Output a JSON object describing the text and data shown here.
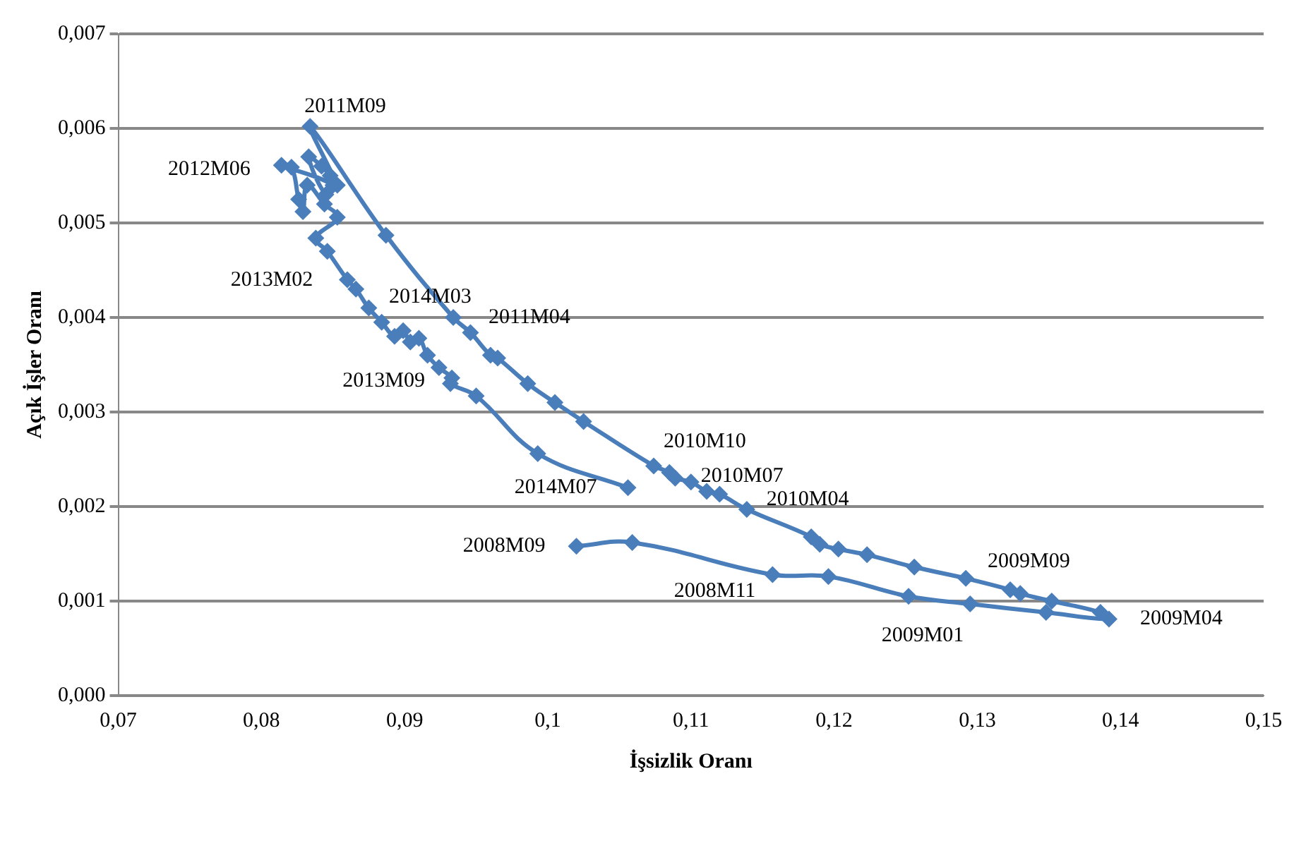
{
  "chart_data": {
    "type": "line",
    "xlabel": "İşsizlik Oranı",
    "ylabel": "Açık İşler Oranı",
    "marker": "diamond",
    "grid": "y",
    "legend": false,
    "xlim": [
      0.07,
      0.15
    ],
    "xticks": [
      {
        "value": 0.07,
        "label": "0,07"
      },
      {
        "value": 0.08,
        "label": "0,08"
      },
      {
        "value": 0.09,
        "label": "0,09"
      },
      {
        "value": 0.1,
        "label": "0,1"
      },
      {
        "value": 0.11,
        "label": "0,11"
      },
      {
        "value": 0.12,
        "label": "0,12"
      },
      {
        "value": 0.13,
        "label": "0,13"
      },
      {
        "value": 0.14,
        "label": "0,14"
      },
      {
        "value": 0.15,
        "label": "0,15"
      }
    ],
    "ylim": [
      0,
      0.007
    ],
    "yticks": [
      {
        "value": 0,
        "label": "0,000"
      },
      {
        "value": 0.001,
        "label": "0,001"
      },
      {
        "value": 0.002,
        "label": "0,002"
      },
      {
        "value": 0.003,
        "label": "0,003"
      },
      {
        "value": 0.004,
        "label": "0,004"
      },
      {
        "value": 0.005,
        "label": "0,005"
      },
      {
        "value": 0.006,
        "label": "0,006"
      },
      {
        "value": 0.007,
        "label": "0,007"
      }
    ],
    "series": [
      {
        "color": "#4a7ebb",
        "x": [
          0.102,
          0.1059,
          0.1157,
          0.1196,
          0.1252,
          0.1295,
          0.1348,
          0.1392,
          0.1386,
          0.1352,
          0.133,
          0.1323,
          0.1292,
          0.1256,
          0.1223,
          0.1203,
          0.119,
          0.1184,
          0.1139,
          0.112,
          0.1111,
          0.11,
          0.1089,
          0.1085,
          0.1074,
          0.1025,
          0.1005,
          0.0986,
          0.0965,
          0.096,
          0.0946,
          0.0934,
          0.0887,
          0.0834,
          0.0853,
          0.0848,
          0.0842,
          0.0833,
          0.0845,
          0.085,
          0.0814,
          0.0821,
          0.0826,
          0.0829,
          0.0832,
          0.0844,
          0.0853,
          0.0838,
          0.0846,
          0.086,
          0.0866,
          0.0875,
          0.0884,
          0.0893,
          0.0899,
          0.0904,
          0.091,
          0.0916,
          0.0924,
          0.0933,
          0.0932,
          0.095,
          0.0993,
          0.1056
        ],
        "values": [
          0.00158,
          0.00162,
          0.00128,
          0.00126,
          0.00105,
          0.00097,
          0.00088,
          0.00081,
          0.00088,
          0.001,
          0.00108,
          0.00112,
          0.00124,
          0.00136,
          0.00149,
          0.00155,
          0.0016,
          0.00168,
          0.00197,
          0.00213,
          0.00216,
          0.00226,
          0.0023,
          0.00236,
          0.00243,
          0.0029,
          0.0031,
          0.0033,
          0.00357,
          0.0036,
          0.00384,
          0.004,
          0.00487,
          0.00602,
          0.0054,
          0.0055,
          0.0056,
          0.0057,
          0.0053,
          0.0054,
          0.00561,
          0.00559,
          0.00525,
          0.00512,
          0.0054,
          0.0052,
          0.00506,
          0.00484,
          0.0047,
          0.0044,
          0.0043,
          0.0041,
          0.00395,
          0.0038,
          0.00386,
          0.00374,
          0.00378,
          0.0036,
          0.00347,
          0.00336,
          0.0033,
          0.00317,
          0.00256,
          0.0022
        ]
      }
    ],
    "annotations": [
      {
        "text": "2011M09",
        "x": 0.0834,
        "y": 0.00602
      },
      {
        "text": "2012M06",
        "x": 0.0814,
        "y": 0.00561
      },
      {
        "text": "2013M02",
        "x": 0.0838,
        "y": 0.00484
      },
      {
        "text": "2014M03",
        "x": 0.0899,
        "y": 0.00386
      },
      {
        "text": "2011M04",
        "x": 0.0934,
        "y": 0.004
      },
      {
        "text": "2013M09",
        "x": 0.0933,
        "y": 0.00336
      },
      {
        "text": "2010M10",
        "x": 0.1074,
        "y": 0.00243
      },
      {
        "text": "2010M07",
        "x": 0.11,
        "y": 0.00226
      },
      {
        "text": "2010M04",
        "x": 0.1139,
        "y": 0.00197
      },
      {
        "text": "2014M07",
        "x": 0.1056,
        "y": 0.0022
      },
      {
        "text": "2008M09",
        "x": 0.102,
        "y": 0.00158
      },
      {
        "text": "2008M11",
        "x": 0.1157,
        "y": 0.00128
      },
      {
        "text": "2009M01",
        "x": 0.1252,
        "y": 0.00105
      },
      {
        "text": "2009M09",
        "x": 0.1323,
        "y": 0.00112
      },
      {
        "text": "2009M04",
        "x": 0.1392,
        "y": 0.00081
      }
    ]
  }
}
